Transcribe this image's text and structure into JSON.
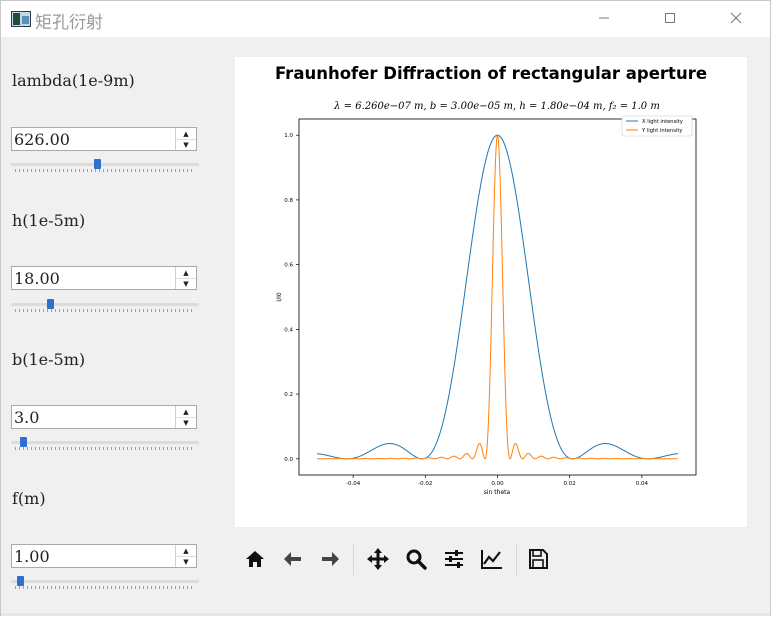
{
  "window": {
    "title": "矩孔衍射",
    "controls": [
      "minimize-icon",
      "maximize-icon",
      "close-icon"
    ]
  },
  "params": [
    {
      "label": "lambda(1e-9m)",
      "value": "626.00",
      "slider_fraction": 0.45
    },
    {
      "label": "h(1e-5m)",
      "value": "18.00",
      "slider_fraction": 0.18
    },
    {
      "label": "b(1e-5m)",
      "value": "3.0",
      "slider_fraction": 0.03
    },
    {
      "label": "f(m)",
      "value": "1.00",
      "slider_fraction": 0.01
    }
  ],
  "chart_data": {
    "type": "line",
    "title": "Fraunhofer Diffraction of rectangular aperture",
    "subtitle": "λ = 6.260e−07 m,  b = 3.00e−05 m,  h = 1.80e−04 m,  f₂ = 1.0 m",
    "xlabel": "sin theta",
    "ylabel": "I/I0",
    "xlim": [
      -0.055,
      0.055
    ],
    "ylim": [
      -0.05,
      1.05
    ],
    "xticks": [
      "-0.04",
      "-0.02",
      "0.00",
      "0.02",
      "0.04"
    ],
    "xtick_values": [
      -0.04,
      -0.02,
      0.0,
      0.02,
      0.04
    ],
    "yticks": [
      "0.0",
      "0.2",
      "0.4",
      "0.6",
      "0.8",
      "1.0"
    ],
    "ytick_values": [
      0.0,
      0.2,
      0.4,
      0.6,
      0.8,
      1.0
    ],
    "x_range": [
      -0.05,
      0.05
    ],
    "series": [
      {
        "name": "X light intensity",
        "color": "#1f77b4",
        "aperture_m": 3e-05
      },
      {
        "name": "Y light intensity",
        "color": "#ff7f0e",
        "aperture_m": 0.00018
      }
    ],
    "wavelength_m": 6.26e-07,
    "legend": "top-right",
    "grid": false
  },
  "toolbar": {
    "icons": [
      "home-icon",
      "back-arrow-icon",
      "forward-arrow-icon",
      "pan-icon",
      "zoom-icon",
      "configure-subplots-icon",
      "edit-axis-icon",
      "save-icon"
    ]
  }
}
